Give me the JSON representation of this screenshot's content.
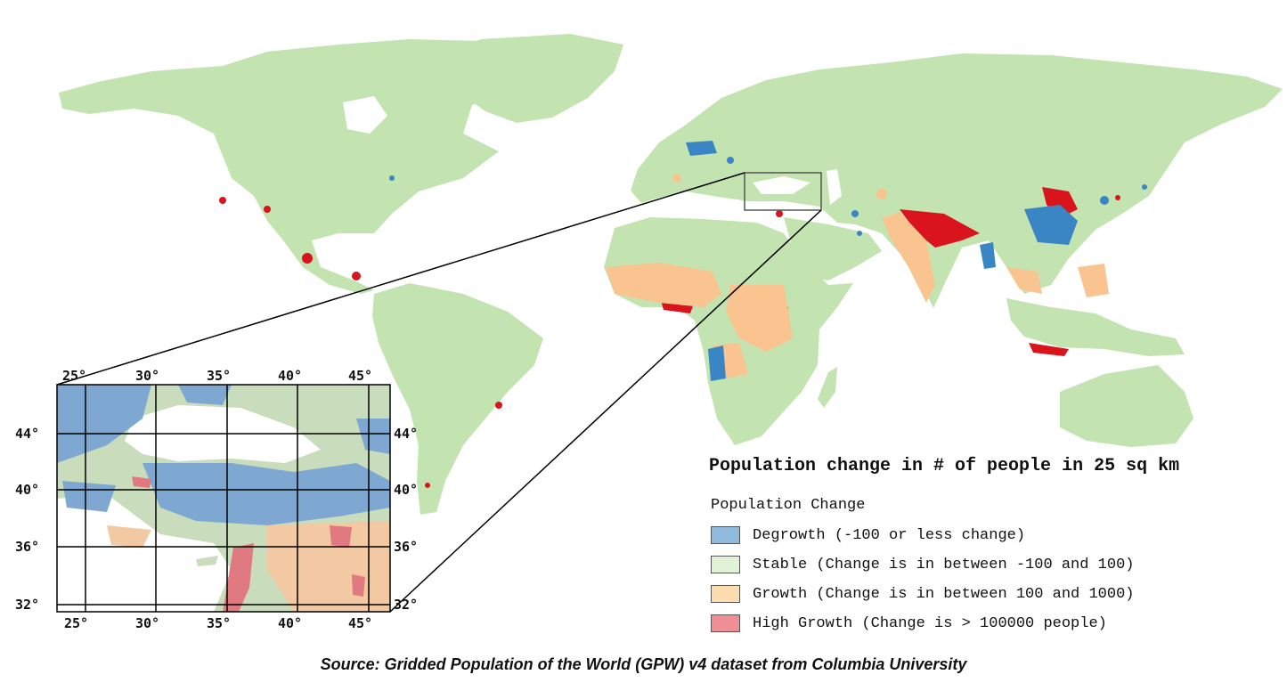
{
  "map": {
    "legend": {
      "title": "Population change in # of people in 25 sq km",
      "heading": "Population Change",
      "items": [
        {
          "label": "Degrowth (-100 or less change)",
          "color": "#5b9bd5"
        },
        {
          "label": "Stable (Change is in between -100 and 100)",
          "color": "#e2f2d6"
        },
        {
          "label": "Growth (Change is in between 100 and 1000)",
          "color": "#fddcb0"
        },
        {
          "label": "High Growth (Change is > 100000 people)",
          "color": "#ef8f95"
        }
      ]
    },
    "source": "Source: Gridded Population of the World (GPW) v4 dataset from Columbia University",
    "inset": {
      "lon_labels": [
        "25°",
        "30°",
        "35°",
        "40°",
        "45°"
      ],
      "lat_labels": [
        "44°",
        "40°",
        "36°",
        "32°"
      ]
    },
    "colors": {
      "land": "#c3e4b1",
      "degrowth": "#3a86c4",
      "growth": "#f9c48f",
      "high_growth": "#d9141c",
      "water": "#ffffff"
    }
  }
}
